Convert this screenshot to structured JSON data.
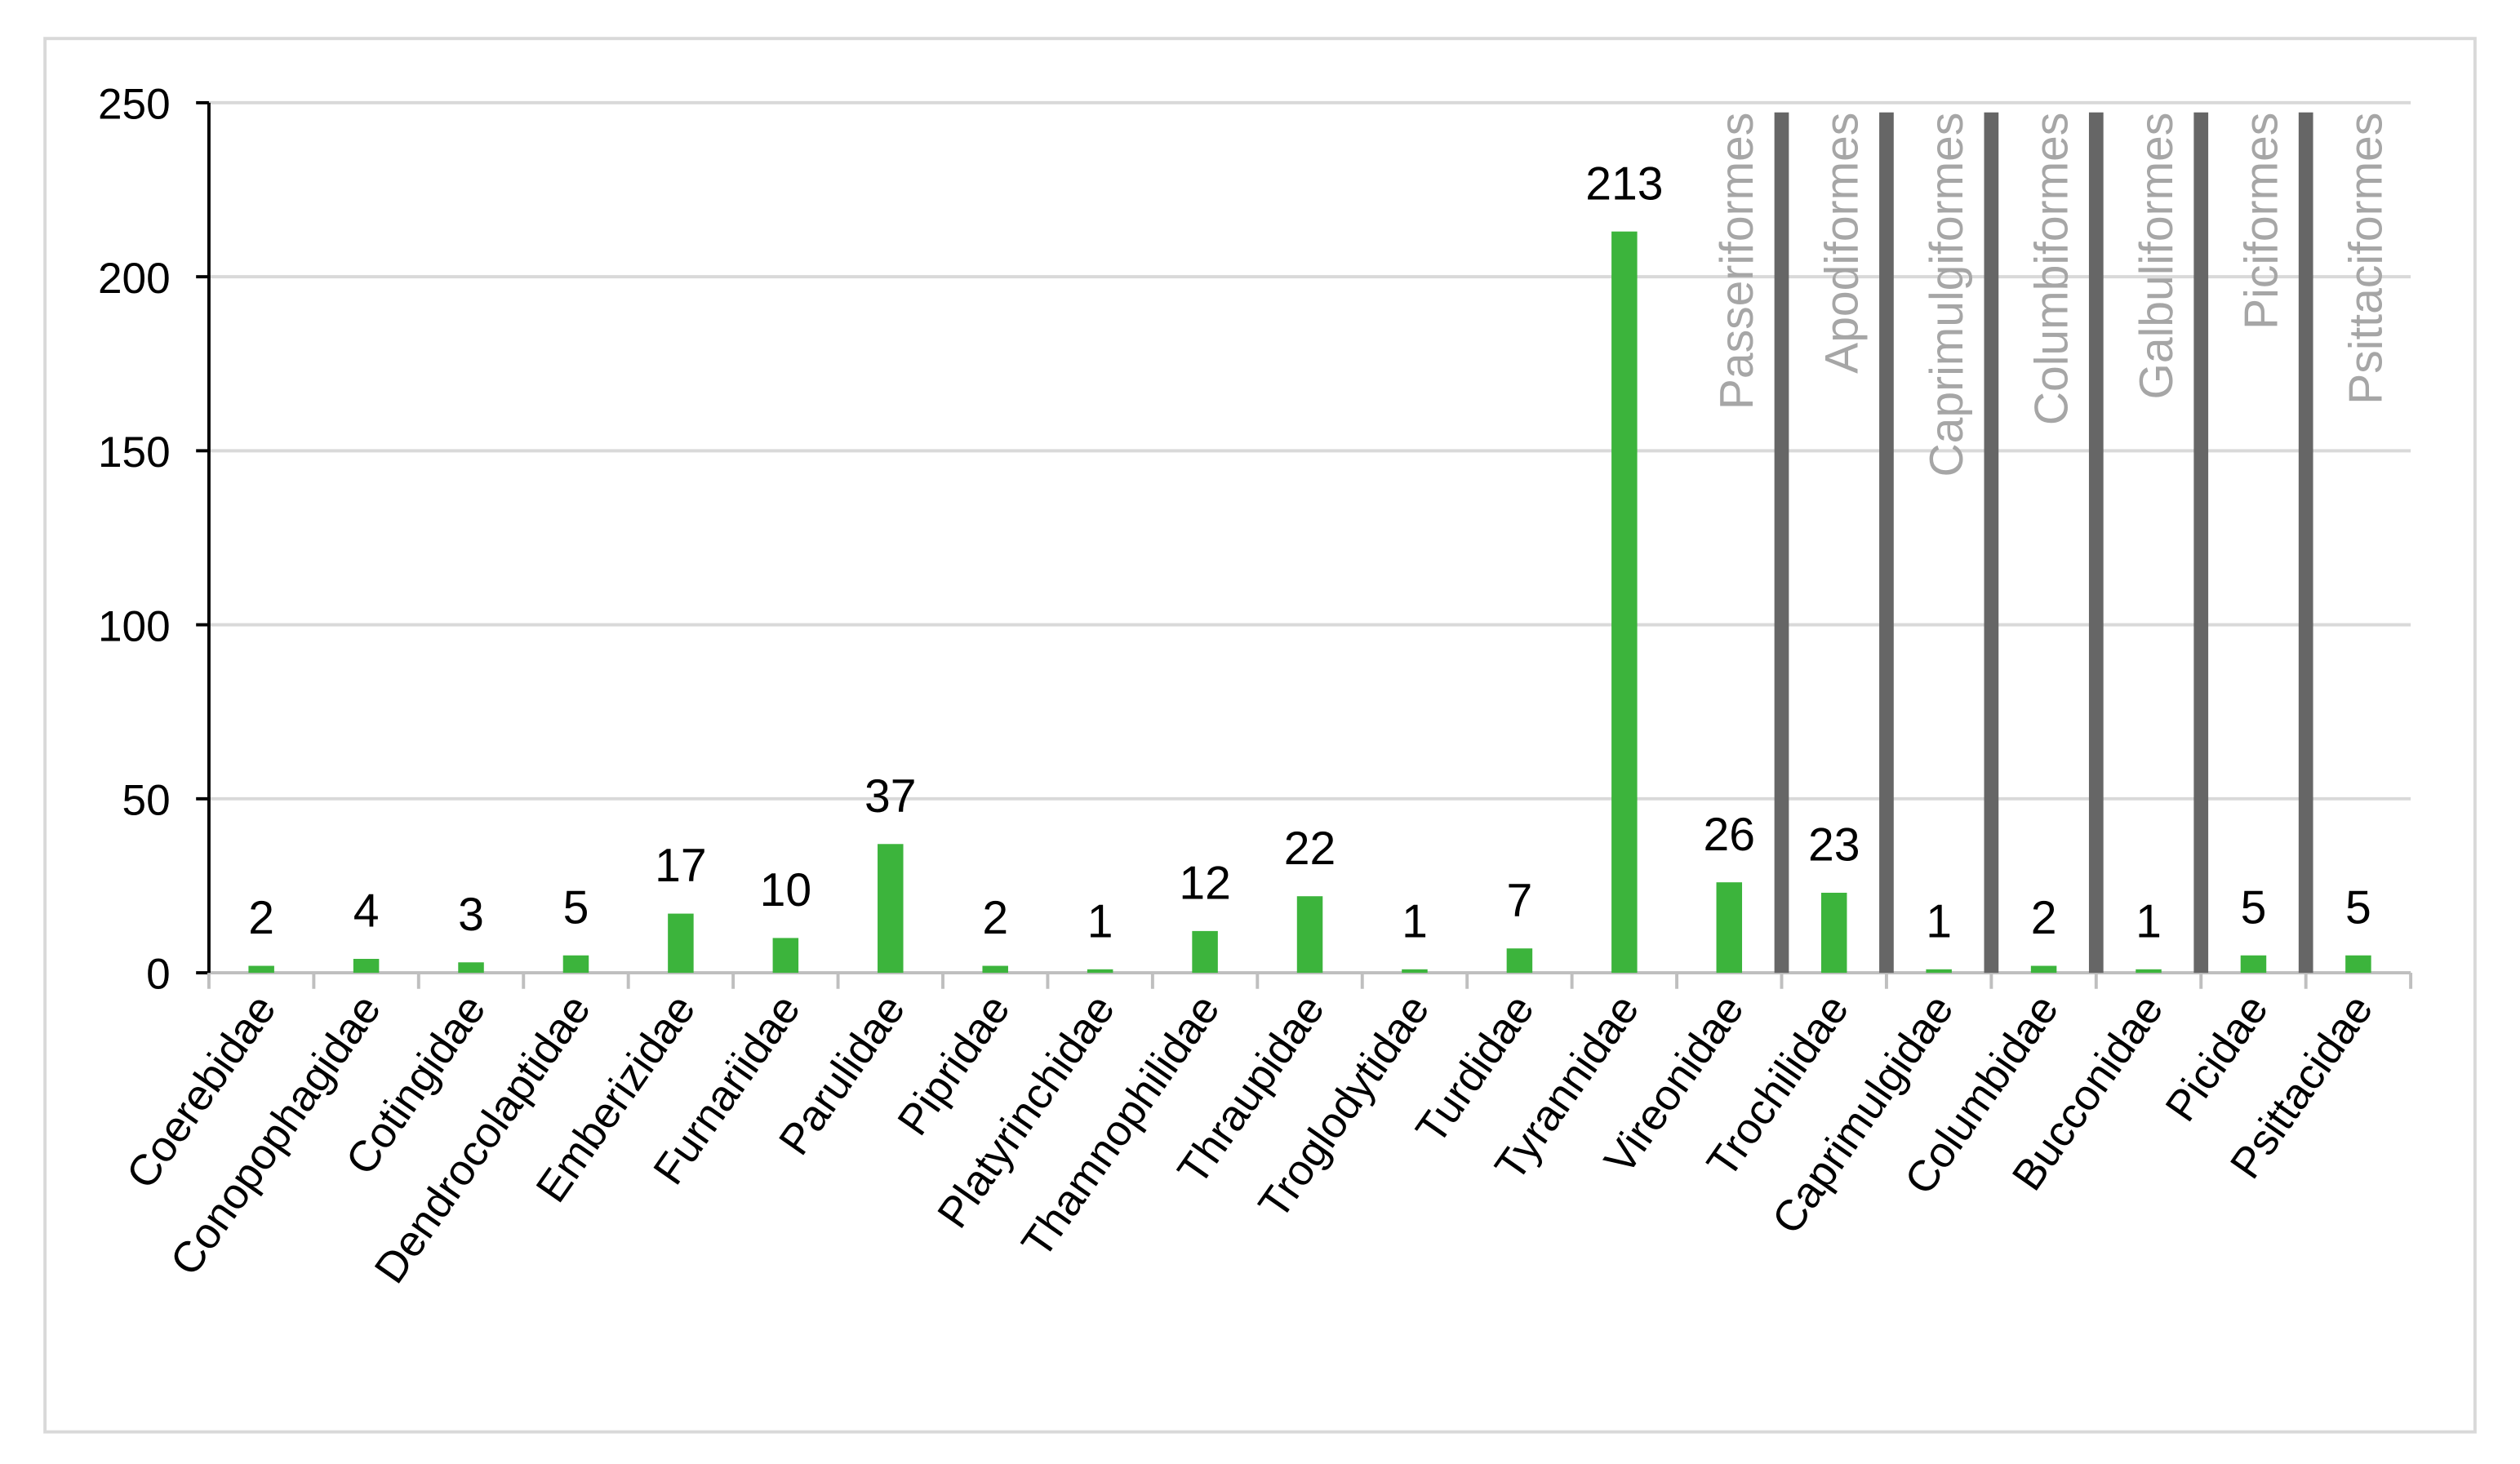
{
  "chart_data": {
    "type": "bar",
    "categories": [
      "Coerebidae",
      "Conopophagidae",
      "Cotingidae",
      "Dendrocolaptidae",
      "Emberizidae",
      "Furnariidae",
      "Parulidae",
      "Pipridae",
      "Platyrinchidae",
      "Thamnophilidae",
      "Thraupidae",
      "Troglodytidae",
      "Turdidae",
      "Tyrannidae",
      "Vireonidae",
      "Trochilidae",
      "Caprimulgidae",
      "Columbidae",
      "Bucconidae",
      "Picidae",
      "Psittacidae"
    ],
    "values": [
      2,
      4,
      3,
      5,
      17,
      10,
      37,
      2,
      1,
      12,
      22,
      1,
      7,
      213,
      26,
      23,
      1,
      2,
      1,
      5,
      5
    ],
    "color": "#3cb43c",
    "ylim": [
      0,
      250
    ],
    "yticks": [
      0,
      50,
      100,
      150,
      200,
      250
    ],
    "grid": true,
    "annotations": [
      "Passeriformes",
      "Apodiformes",
      "Caprimulgiformes",
      "Columbiformes",
      "Galbuliformes",
      "Piciformes",
      "Psittaciformes"
    ]
  }
}
